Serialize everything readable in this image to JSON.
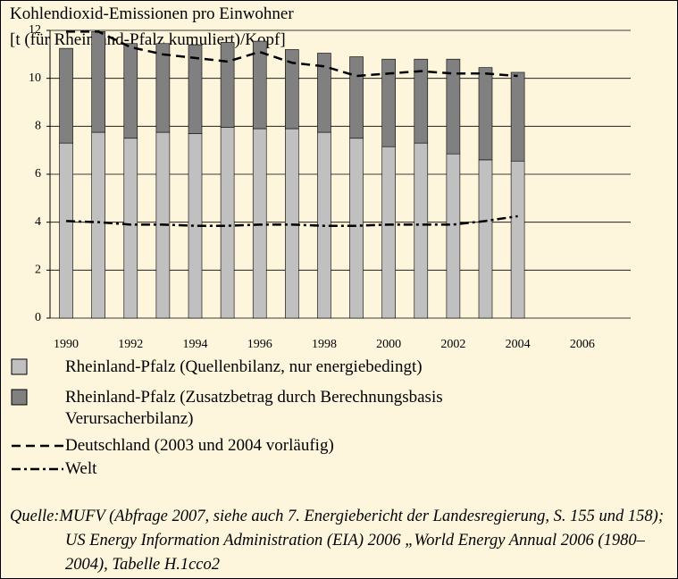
{
  "chart_data": {
    "type": "bar",
    "title": "Kohlendioxid-Emissionen pro Einwohner",
    "subtitle": "[t (für Rheinland-Pfalz kumuliert)/Kopf]",
    "x": [
      1990,
      1991,
      1992,
      1993,
      1994,
      1995,
      1996,
      1997,
      1998,
      1999,
      2000,
      2001,
      2002,
      2003,
      2004
    ],
    "series": [
      {
        "name": "Rheinland-Pfalz (Quellenbilanz, nur energiebedingt)",
        "type": "bar",
        "color": "#c0c0c0",
        "values": [
          7.3,
          7.75,
          7.5,
          7.75,
          7.7,
          7.95,
          7.9,
          7.9,
          7.75,
          7.5,
          7.15,
          7.3,
          6.85,
          6.6,
          6.55
        ]
      },
      {
        "name": "Rheinland-Pfalz (Zusatzbetrag durch Berechnungsbasis Verursacherbilanz)",
        "type": "bar",
        "color": "#808080",
        "values": [
          3.95,
          4.2,
          3.95,
          3.7,
          3.7,
          3.55,
          3.65,
          3.3,
          3.3,
          3.4,
          3.65,
          3.5,
          3.95,
          3.85,
          3.7
        ]
      },
      {
        "name": "Deutschland (2003 und 2004 vorläufig)",
        "type": "line",
        "linestyle": "dashed",
        "color": "#000000",
        "values": [
          11.95,
          11.95,
          11.3,
          11.0,
          10.85,
          10.7,
          11.1,
          10.65,
          10.5,
          10.1,
          10.2,
          10.3,
          10.2,
          10.2,
          10.1
        ]
      },
      {
        "name": "Welt",
        "type": "line",
        "linestyle": "dashdot",
        "color": "#000000",
        "values": [
          4.05,
          4.0,
          3.9,
          3.9,
          3.85,
          3.85,
          3.9,
          3.9,
          3.85,
          3.85,
          3.9,
          3.9,
          3.9,
          4.05,
          4.25
        ]
      }
    ],
    "xlim": [
      1989.5,
      2007.5
    ],
    "xticks": [
      1990,
      1992,
      1994,
      1996,
      1998,
      2000,
      2002,
      2004,
      2006
    ],
    "ylim": [
      0,
      12
    ],
    "yticks": [
      0,
      2,
      4,
      6,
      8,
      10,
      12
    ],
    "grid": true,
    "source": "Quelle:MUFV (Abfrage 2007, siehe auch 7. Energiebericht der Landesregierung, S. 155 und 158); US Energy Information Administration (EIA) 2006 „World Energy Annual 2006 (1980–2004), Tabelle H.1cco2"
  }
}
